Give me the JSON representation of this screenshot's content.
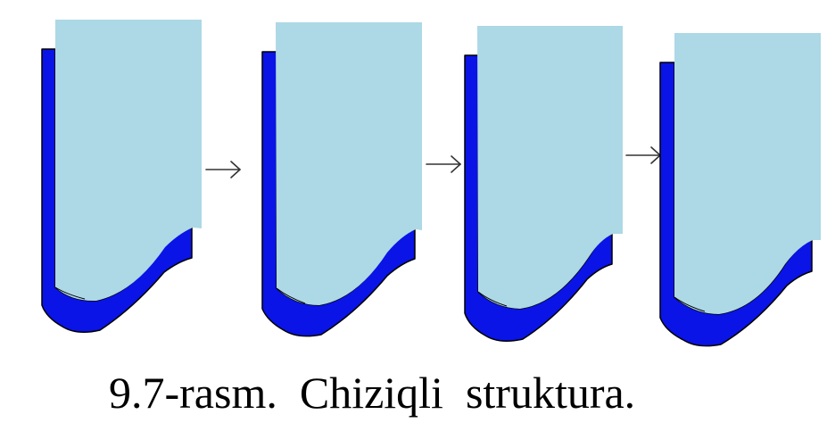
{
  "figure": {
    "panel_count": 4,
    "arrow_count": 3,
    "colors": {
      "layer": "#0a14e6",
      "block": "#add8e6",
      "outline": "#000000",
      "arrow": "#333333"
    }
  },
  "caption": "9.7-rasm.  Chiziqli  struktura."
}
